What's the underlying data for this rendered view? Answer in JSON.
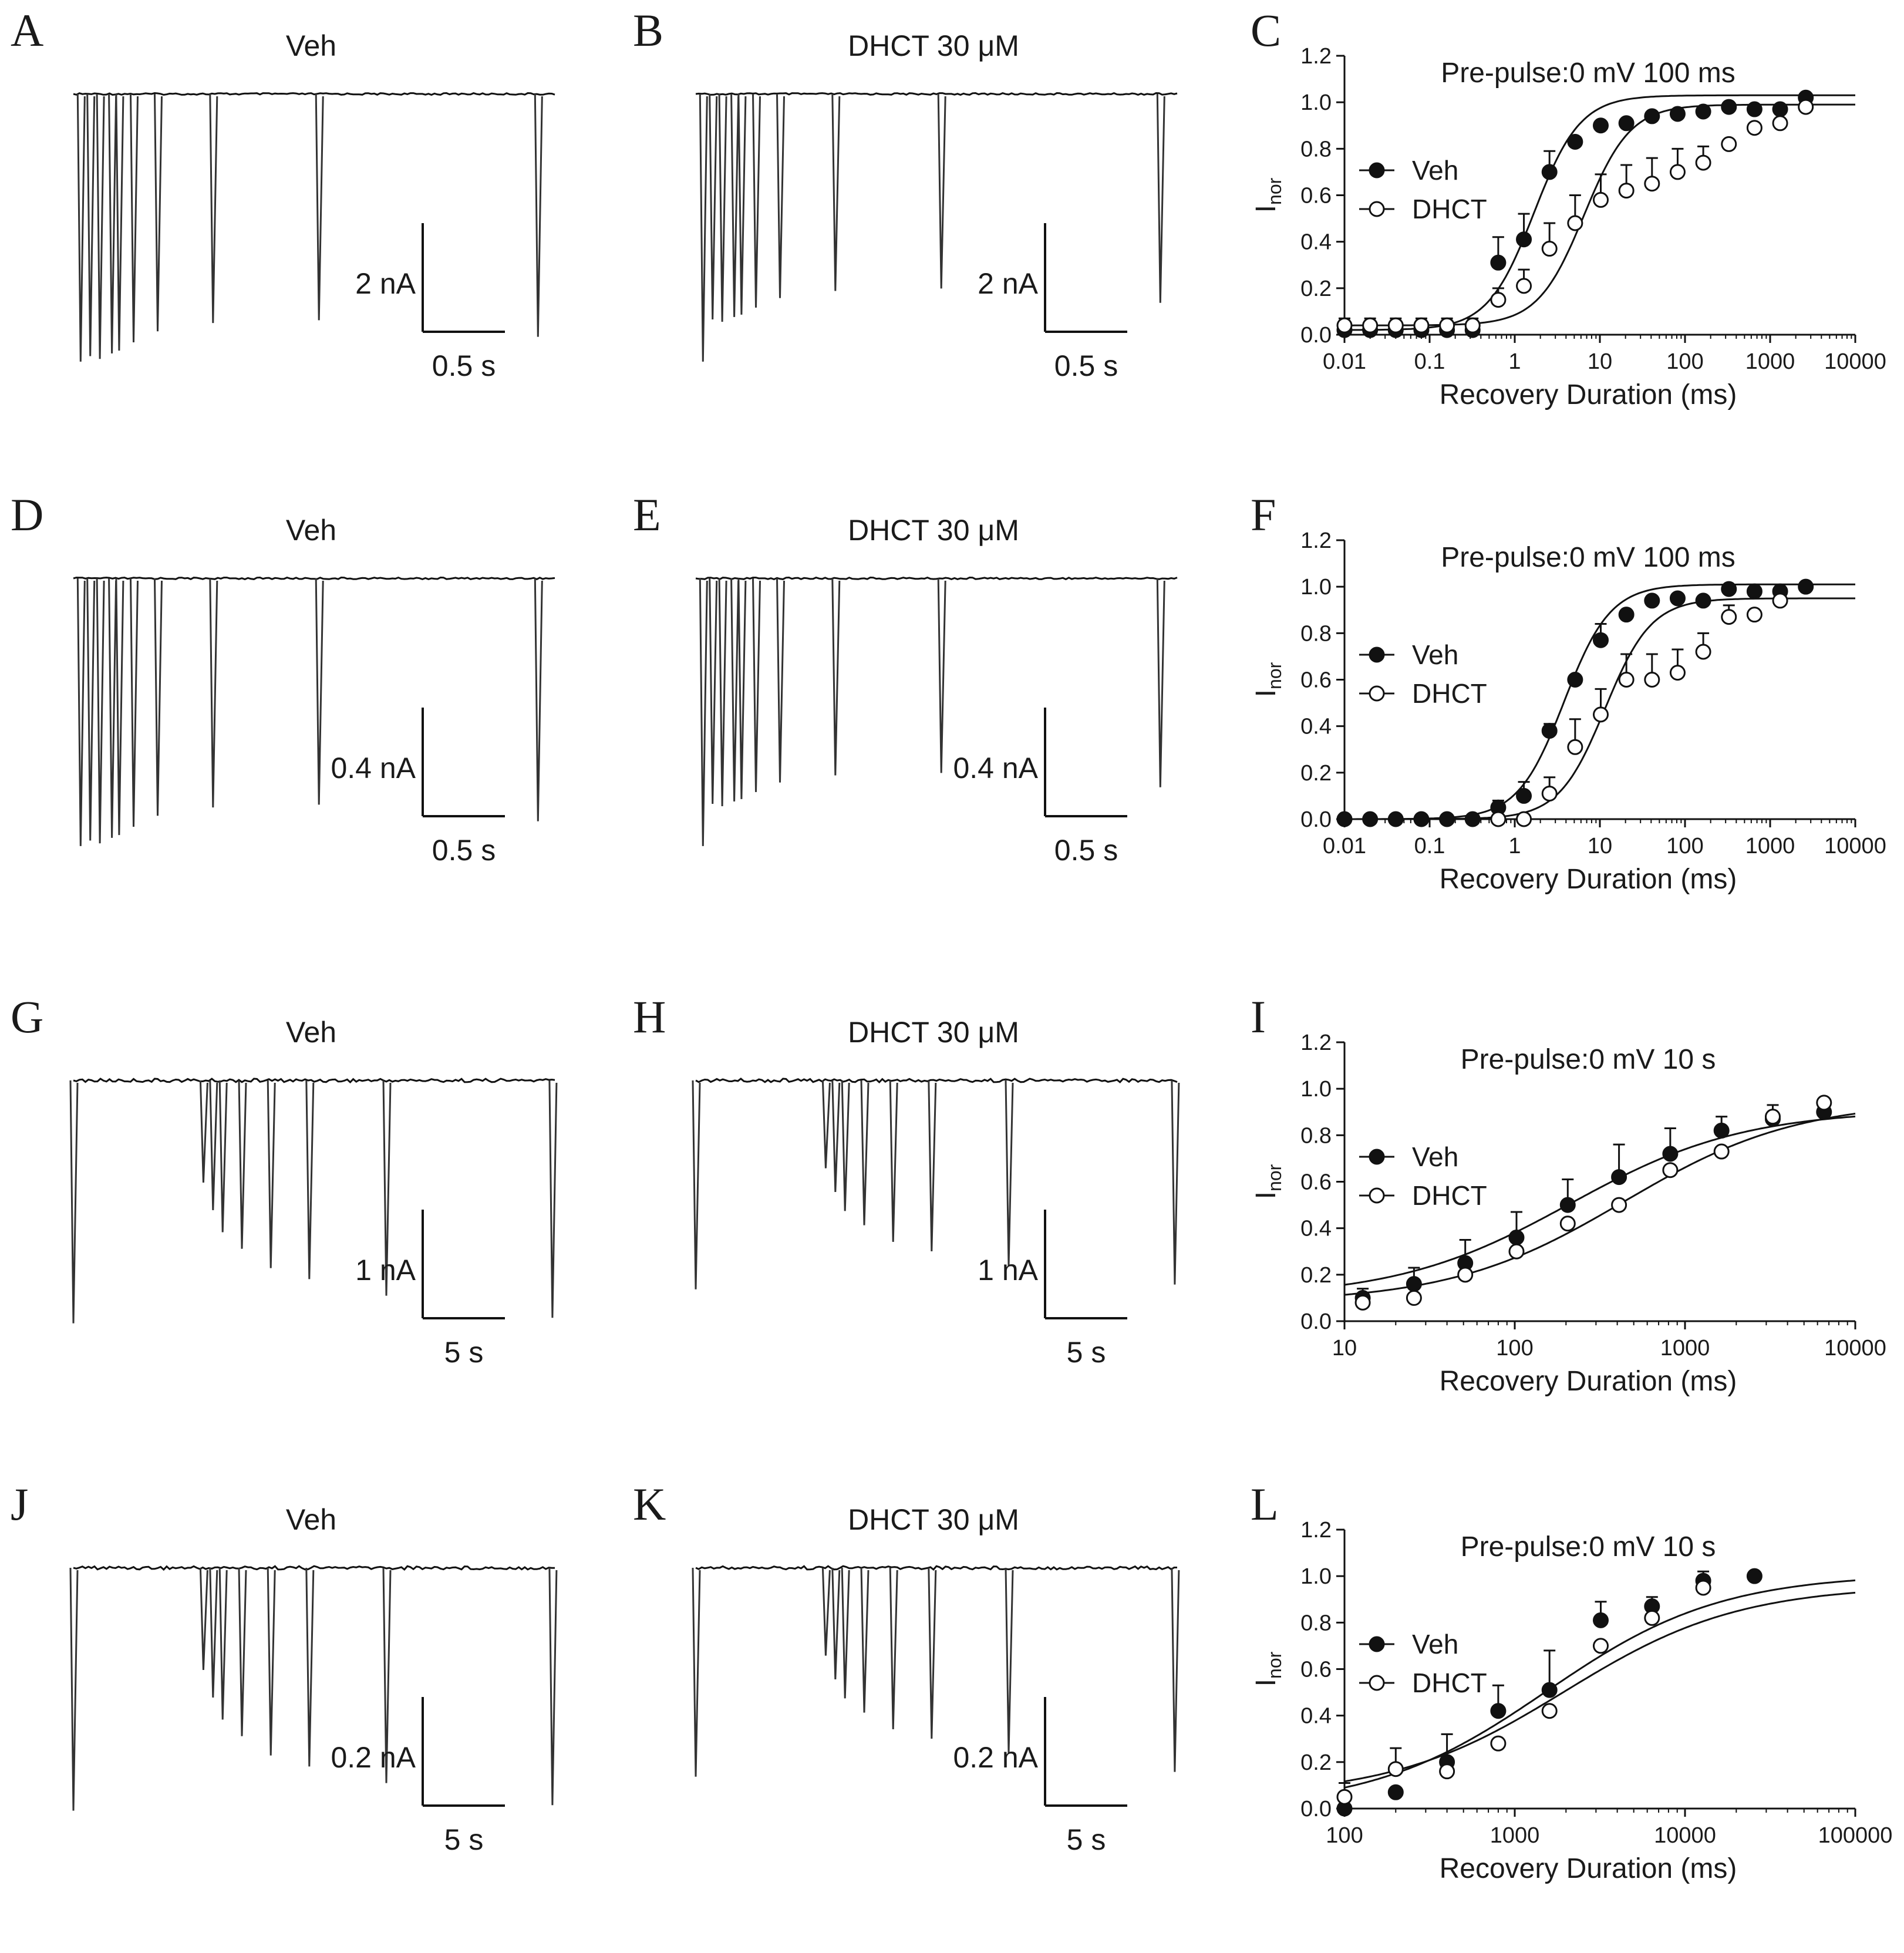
{
  "figure": {
    "panels": [
      {
        "letter": "A",
        "kind": "trace",
        "title": "Veh",
        "scale_y": "2 nA",
        "scale_x": "0.5 s",
        "timescale": "short",
        "row": 0,
        "col": 0
      },
      {
        "letter": "B",
        "kind": "trace",
        "title": "DHCT 30 μM",
        "scale_y": "2 nA",
        "scale_x": "0.5 s",
        "timescale": "short",
        "row": 0,
        "col": 1
      },
      {
        "letter": "D",
        "kind": "trace",
        "title": "Veh",
        "scale_y": "0.4 nA",
        "scale_x": "0.5 s",
        "timescale": "short",
        "row": 1,
        "col": 0
      },
      {
        "letter": "E",
        "kind": "trace",
        "title": "DHCT 30 μM",
        "scale_y": "0.4 nA",
        "scale_x": "0.5 s",
        "timescale": "short",
        "row": 1,
        "col": 1
      },
      {
        "letter": "G",
        "kind": "trace",
        "title": "Veh",
        "scale_y": "1 nA",
        "scale_x": "5 s",
        "timescale": "long",
        "row": 2,
        "col": 0
      },
      {
        "letter": "H",
        "kind": "trace",
        "title": "DHCT 30 μM",
        "scale_y": "1 nA",
        "scale_x": "5 s",
        "timescale": "long",
        "row": 2,
        "col": 1
      },
      {
        "letter": "J",
        "kind": "trace",
        "title": "Veh",
        "scale_y": "0.2 nA",
        "scale_x": "5 s",
        "timescale": "long",
        "row": 3,
        "col": 0
      },
      {
        "letter": "K",
        "kind": "trace",
        "title": "DHCT 30 μM",
        "scale_y": "0.2 nA",
        "scale_x": "5 s",
        "timescale": "long",
        "row": 3,
        "col": 1
      }
    ]
  },
  "chart_data": [
    {
      "panel": "C",
      "type": "scatter",
      "title": "Pre-pulse:0 mV 100 ms",
      "xlabel": "Recovery Duration (ms)",
      "ylabel": "I",
      "ylabel_sub": "nor",
      "xscale": "log",
      "xlim": [
        0.01,
        10000
      ],
      "ylim": [
        0,
        1.2
      ],
      "xticks": [
        0.01,
        0.1,
        1,
        10,
        100,
        1000,
        10000
      ],
      "xtick_labels": [
        "0.01",
        "0.1",
        "1",
        "10",
        "100",
        "1000",
        "10000"
      ],
      "yticks": [
        0,
        0.2,
        0.4,
        0.6,
        0.8,
        1.0,
        1.2
      ],
      "ytick_labels": [
        "0.0",
        "0.2",
        "0.4",
        "0.6",
        "0.8",
        "1.0",
        "1.2"
      ],
      "legend": [
        "Veh",
        "DHCT"
      ],
      "series": [
        {
          "name": "Veh",
          "marker": "filled",
          "x": [
            0.01,
            0.02,
            0.04,
            0.08,
            0.16,
            0.32,
            0.64,
            1.28,
            2.56,
            5.12,
            10.24,
            20.48,
            40.96,
            81.92,
            163.84,
            327.68,
            655.36,
            1310.72,
            2621.44
          ],
          "y": [
            0.02,
            0.02,
            0.02,
            0.02,
            0.02,
            0.02,
            0.31,
            0.41,
            0.7,
            0.83,
            0.9,
            0.91,
            0.94,
            0.95,
            0.96,
            0.98,
            0.97,
            0.97,
            1.02
          ],
          "err": [
            0,
            0,
            0,
            0,
            0,
            0,
            0.11,
            0.11,
            0.09,
            0.02,
            0,
            0,
            0,
            0,
            0,
            0,
            0,
            0,
            0
          ]
        },
        {
          "name": "DHCT",
          "marker": "open",
          "x": [
            0.01,
            0.02,
            0.04,
            0.08,
            0.16,
            0.32,
            0.64,
            1.28,
            2.56,
            5.12,
            10.24,
            20.48,
            40.96,
            81.92,
            163.84,
            327.68,
            655.36,
            1310.72,
            2621.44
          ],
          "y": [
            0.04,
            0.04,
            0.04,
            0.04,
            0.04,
            0.04,
            0.15,
            0.21,
            0.37,
            0.48,
            0.58,
            0.62,
            0.65,
            0.7,
            0.74,
            0.82,
            0.89,
            0.91,
            0.98
          ],
          "err": [
            0.03,
            0.03,
            0.03,
            0.03,
            0.03,
            0.03,
            0.05,
            0.07,
            0.11,
            0.12,
            0.11,
            0.11,
            0.11,
            0.1,
            0.07,
            0,
            0,
            0,
            0
          ]
        }
      ]
    },
    {
      "panel": "F",
      "type": "scatter",
      "title": "Pre-pulse:0 mV 100 ms",
      "xlabel": "Recovery Duration (ms)",
      "ylabel": "I",
      "ylabel_sub": "nor",
      "xscale": "log",
      "xlim": [
        0.01,
        10000
      ],
      "ylim": [
        0,
        1.2
      ],
      "xticks": [
        0.01,
        0.1,
        1,
        10,
        100,
        1000,
        10000
      ],
      "xtick_labels": [
        "0.01",
        "0.1",
        "1",
        "10",
        "100",
        "1000",
        "10000"
      ],
      "yticks": [
        0,
        0.2,
        0.4,
        0.6,
        0.8,
        1.0,
        1.2
      ],
      "ytick_labels": [
        "0.0",
        "0.2",
        "0.4",
        "0.6",
        "0.8",
        "1.0",
        "1.2"
      ],
      "legend": [
        "Veh",
        "DHCT"
      ],
      "series": [
        {
          "name": "Veh",
          "marker": "filled",
          "x": [
            0.01,
            0.02,
            0.04,
            0.08,
            0.16,
            0.32,
            0.64,
            1.28,
            2.56,
            5.12,
            10.24,
            20.48,
            40.96,
            81.92,
            163.84,
            327.68,
            655.36,
            1310.72,
            2621.44
          ],
          "y": [
            0,
            0,
            0,
            0,
            0,
            0,
            0.05,
            0.1,
            0.38,
            0.6,
            0.77,
            0.88,
            0.94,
            0.95,
            0.94,
            0.99,
            0.98,
            0.98,
            1.0
          ],
          "err": [
            0,
            0,
            0,
            0,
            0,
            0,
            0.03,
            0.06,
            0.03,
            0.01,
            0.07,
            0,
            0,
            0,
            0,
            0,
            0,
            0,
            0
          ]
        },
        {
          "name": "DHCT",
          "marker": "open",
          "x": [
            0.64,
            1.28,
            2.56,
            5.12,
            10.24,
            20.48,
            40.96,
            81.92,
            163.84,
            327.68,
            655.36,
            1310.72
          ],
          "y": [
            0,
            0,
            0.11,
            0.31,
            0.45,
            0.6,
            0.6,
            0.63,
            0.72,
            0.87,
            0.88,
            0.94
          ],
          "err": [
            0,
            0,
            0.07,
            0.12,
            0.11,
            0.11,
            0.11,
            0.1,
            0.08,
            0.05,
            0,
            0
          ]
        }
      ]
    },
    {
      "panel": "I",
      "type": "scatter",
      "title": "Pre-pulse:0 mV 10 s",
      "xlabel": "Recovery Duration (ms)",
      "ylabel": "I",
      "ylabel_sub": "nor",
      "xscale": "log",
      "xlim": [
        10,
        10000
      ],
      "ylim": [
        0,
        1.2
      ],
      "xticks": [
        10,
        100,
        1000,
        10000
      ],
      "xtick_labels": [
        "10",
        "100",
        "1000",
        "10000"
      ],
      "yticks": [
        0,
        0.2,
        0.4,
        0.6,
        0.8,
        1.0,
        1.2
      ],
      "ytick_labels": [
        "0.0",
        "0.2",
        "0.4",
        "0.6",
        "0.8",
        "1.0",
        "1.2"
      ],
      "legend": [
        "Veh",
        "DHCT"
      ],
      "series": [
        {
          "name": "Veh",
          "marker": "filled",
          "x": [
            12.8,
            25.6,
            51.2,
            102.4,
            204.8,
            409.6,
            819.2,
            1638.4,
            3276.8,
            6553.6
          ],
          "y": [
            0.1,
            0.16,
            0.25,
            0.36,
            0.5,
            0.62,
            0.72,
            0.82,
            0.87,
            0.9
          ],
          "err": [
            0.04,
            0.07,
            0.1,
            0.11,
            0.11,
            0.14,
            0.11,
            0.06,
            0.06,
            0
          ]
        },
        {
          "name": "DHCT",
          "marker": "open",
          "x": [
            12.8,
            25.6,
            51.2,
            102.4,
            204.8,
            409.6,
            819.2,
            1638.4,
            3276.8,
            6553.6
          ],
          "y": [
            0.08,
            0.1,
            0.2,
            0.3,
            0.42,
            0.5,
            0.65,
            0.73,
            0.88,
            0.94
          ],
          "err": [
            0,
            0,
            0,
            0,
            0,
            0,
            0,
            0,
            0,
            0
          ]
        }
      ]
    },
    {
      "panel": "L",
      "type": "scatter",
      "title": "Pre-pulse:0 mV 10 s",
      "xlabel": "Recovery Duration (ms)",
      "ylabel": "I",
      "ylabel_sub": "nor",
      "xscale": "log",
      "xlim": [
        100,
        100000
      ],
      "ylim": [
        0,
        1.2
      ],
      "xticks": [
        100,
        1000,
        10000,
        100000
      ],
      "xtick_labels": [
        "100",
        "1000",
        "10000",
        "100000"
      ],
      "yticks": [
        0,
        0.2,
        0.4,
        0.6,
        0.8,
        1.0,
        1.2
      ],
      "ytick_labels": [
        "0.0",
        "0.2",
        "0.4",
        "0.6",
        "0.8",
        "1.0",
        "1.2"
      ],
      "legend": [
        "Veh",
        "DHCT"
      ],
      "series": [
        {
          "name": "Veh",
          "marker": "filled",
          "x": [
            100,
            200,
            400,
            800,
            1600,
            3200,
            6400,
            12800,
            25600
          ],
          "y": [
            0,
            0.07,
            0.2,
            0.42,
            0.51,
            0.81,
            0.87,
            0.98,
            1.0
          ],
          "err": [
            0,
            0,
            0.12,
            0.11,
            0.17,
            0.08,
            0.04,
            0.04,
            0
          ]
        },
        {
          "name": "DHCT",
          "marker": "open",
          "x": [
            100,
            200,
            400,
            800,
            1600,
            3200,
            6400,
            12800
          ],
          "y": [
            0.05,
            0.17,
            0.16,
            0.28,
            0.42,
            0.7,
            0.82,
            0.95
          ],
          "err": [
            0.06,
            0.09,
            0,
            0,
            0,
            0,
            0,
            0
          ]
        }
      ]
    }
  ]
}
